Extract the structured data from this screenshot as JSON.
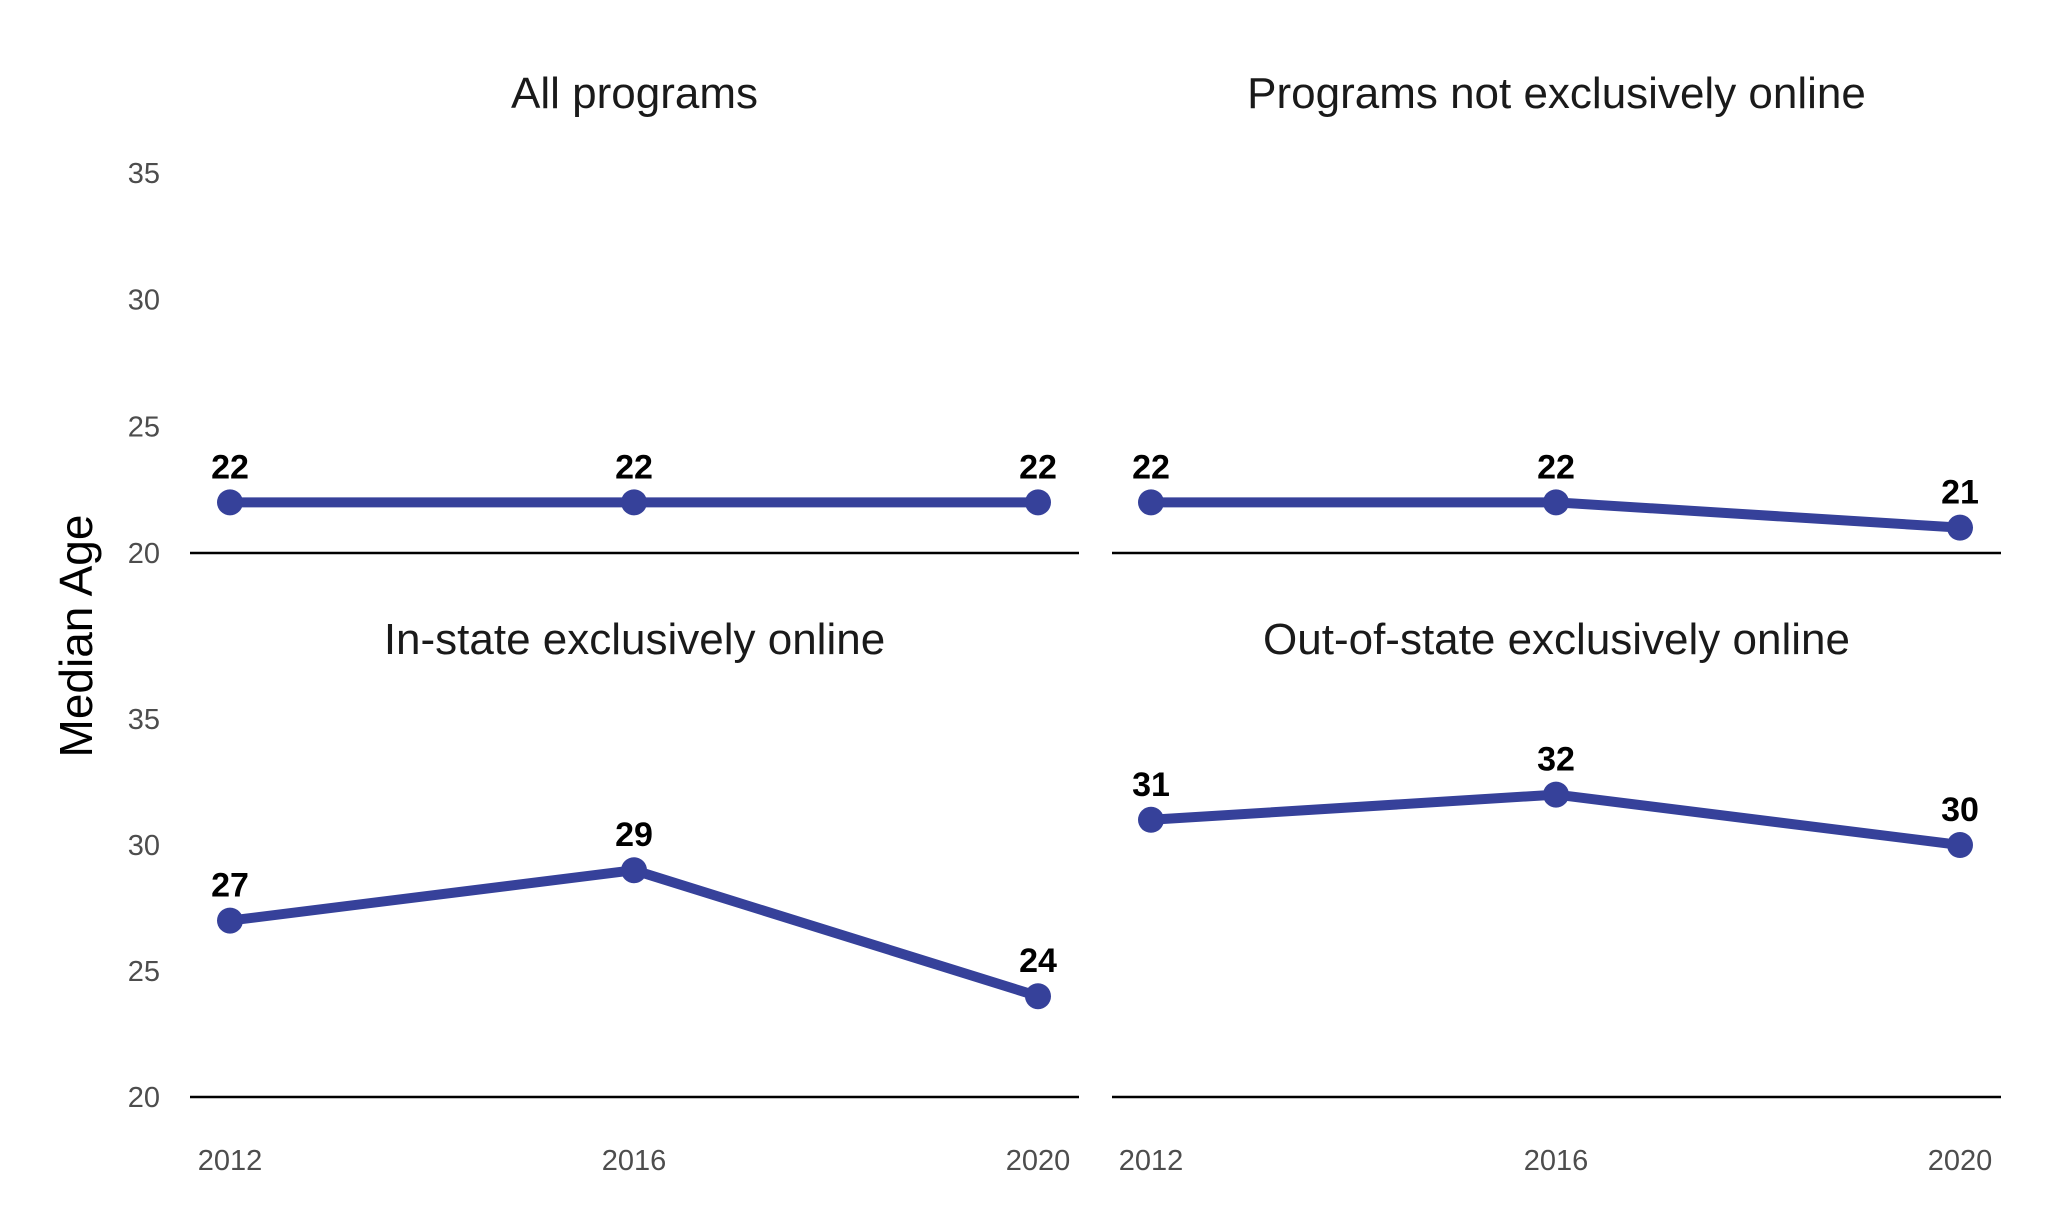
{
  "chart_data": {
    "type": "line",
    "ylabel": "Median Age",
    "xlabel": "",
    "x": [
      "2012",
      "2016",
      "2020"
    ],
    "ylim": [
      20,
      35
    ],
    "yticks": [
      "20",
      "25",
      "30",
      "35"
    ],
    "color": "#36419a",
    "panels": [
      {
        "title": "All programs",
        "values": [
          22,
          22,
          22
        ],
        "labels": [
          "22",
          "22",
          "22"
        ]
      },
      {
        "title": "Programs not exclusively online",
        "values": [
          22,
          22,
          21
        ],
        "labels": [
          "22",
          "22",
          "21"
        ]
      },
      {
        "title": "In-state exclusively online",
        "values": [
          27,
          29,
          24
        ],
        "labels": [
          "27",
          "29",
          "24"
        ]
      },
      {
        "title": "Out-of-state exclusively online",
        "values": [
          31,
          32,
          30
        ],
        "labels": [
          "31",
          "32",
          "30"
        ]
      }
    ]
  }
}
